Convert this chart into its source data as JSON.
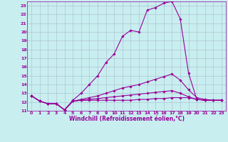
{
  "xlabel": "Windchill (Refroidissement éolien,°C)",
  "bg_color": "#c8eef0",
  "line_color": "#990099",
  "grid_color": "#aabbcc",
  "xlim": [
    -0.5,
    23.5
  ],
  "ylim": [
    11,
    23.5
  ],
  "xticks": [
    0,
    1,
    2,
    3,
    4,
    5,
    6,
    7,
    8,
    9,
    10,
    11,
    12,
    13,
    14,
    15,
    16,
    17,
    18,
    19,
    20,
    21,
    22,
    23
  ],
  "yticks": [
    11,
    12,
    13,
    14,
    15,
    16,
    17,
    18,
    19,
    20,
    21,
    22,
    23
  ],
  "series": [
    [
      12.7,
      12.1,
      11.8,
      11.8,
      11.1,
      12.1,
      12.2,
      12.2,
      12.2,
      12.2,
      12.2,
      12.2,
      12.2,
      12.3,
      12.3,
      12.4,
      12.4,
      12.5,
      12.5,
      12.5,
      12.3,
      12.2,
      12.2,
      12.2
    ],
    [
      12.7,
      12.1,
      11.8,
      11.8,
      11.1,
      12.2,
      13.0,
      14.0,
      15.0,
      16.5,
      17.5,
      19.5,
      20.2,
      20.0,
      22.5,
      22.8,
      23.3,
      23.5,
      21.5,
      15.3,
      12.3,
      12.2,
      12.2,
      12.2
    ],
    [
      12.7,
      12.1,
      11.8,
      11.8,
      11.1,
      12.1,
      12.3,
      12.5,
      12.7,
      13.0,
      13.3,
      13.6,
      13.8,
      14.0,
      14.3,
      14.6,
      14.9,
      15.2,
      14.5,
      13.4,
      12.5,
      12.3,
      12.2,
      12.2
    ],
    [
      12.7,
      12.1,
      11.8,
      11.8,
      11.1,
      12.1,
      12.2,
      12.3,
      12.4,
      12.5,
      12.6,
      12.7,
      12.8,
      12.9,
      13.0,
      13.1,
      13.2,
      13.3,
      13.0,
      12.6,
      12.3,
      12.2,
      12.2,
      12.2
    ]
  ],
  "tick_fontsize": 4.5,
  "xlabel_fontsize": 5.5
}
